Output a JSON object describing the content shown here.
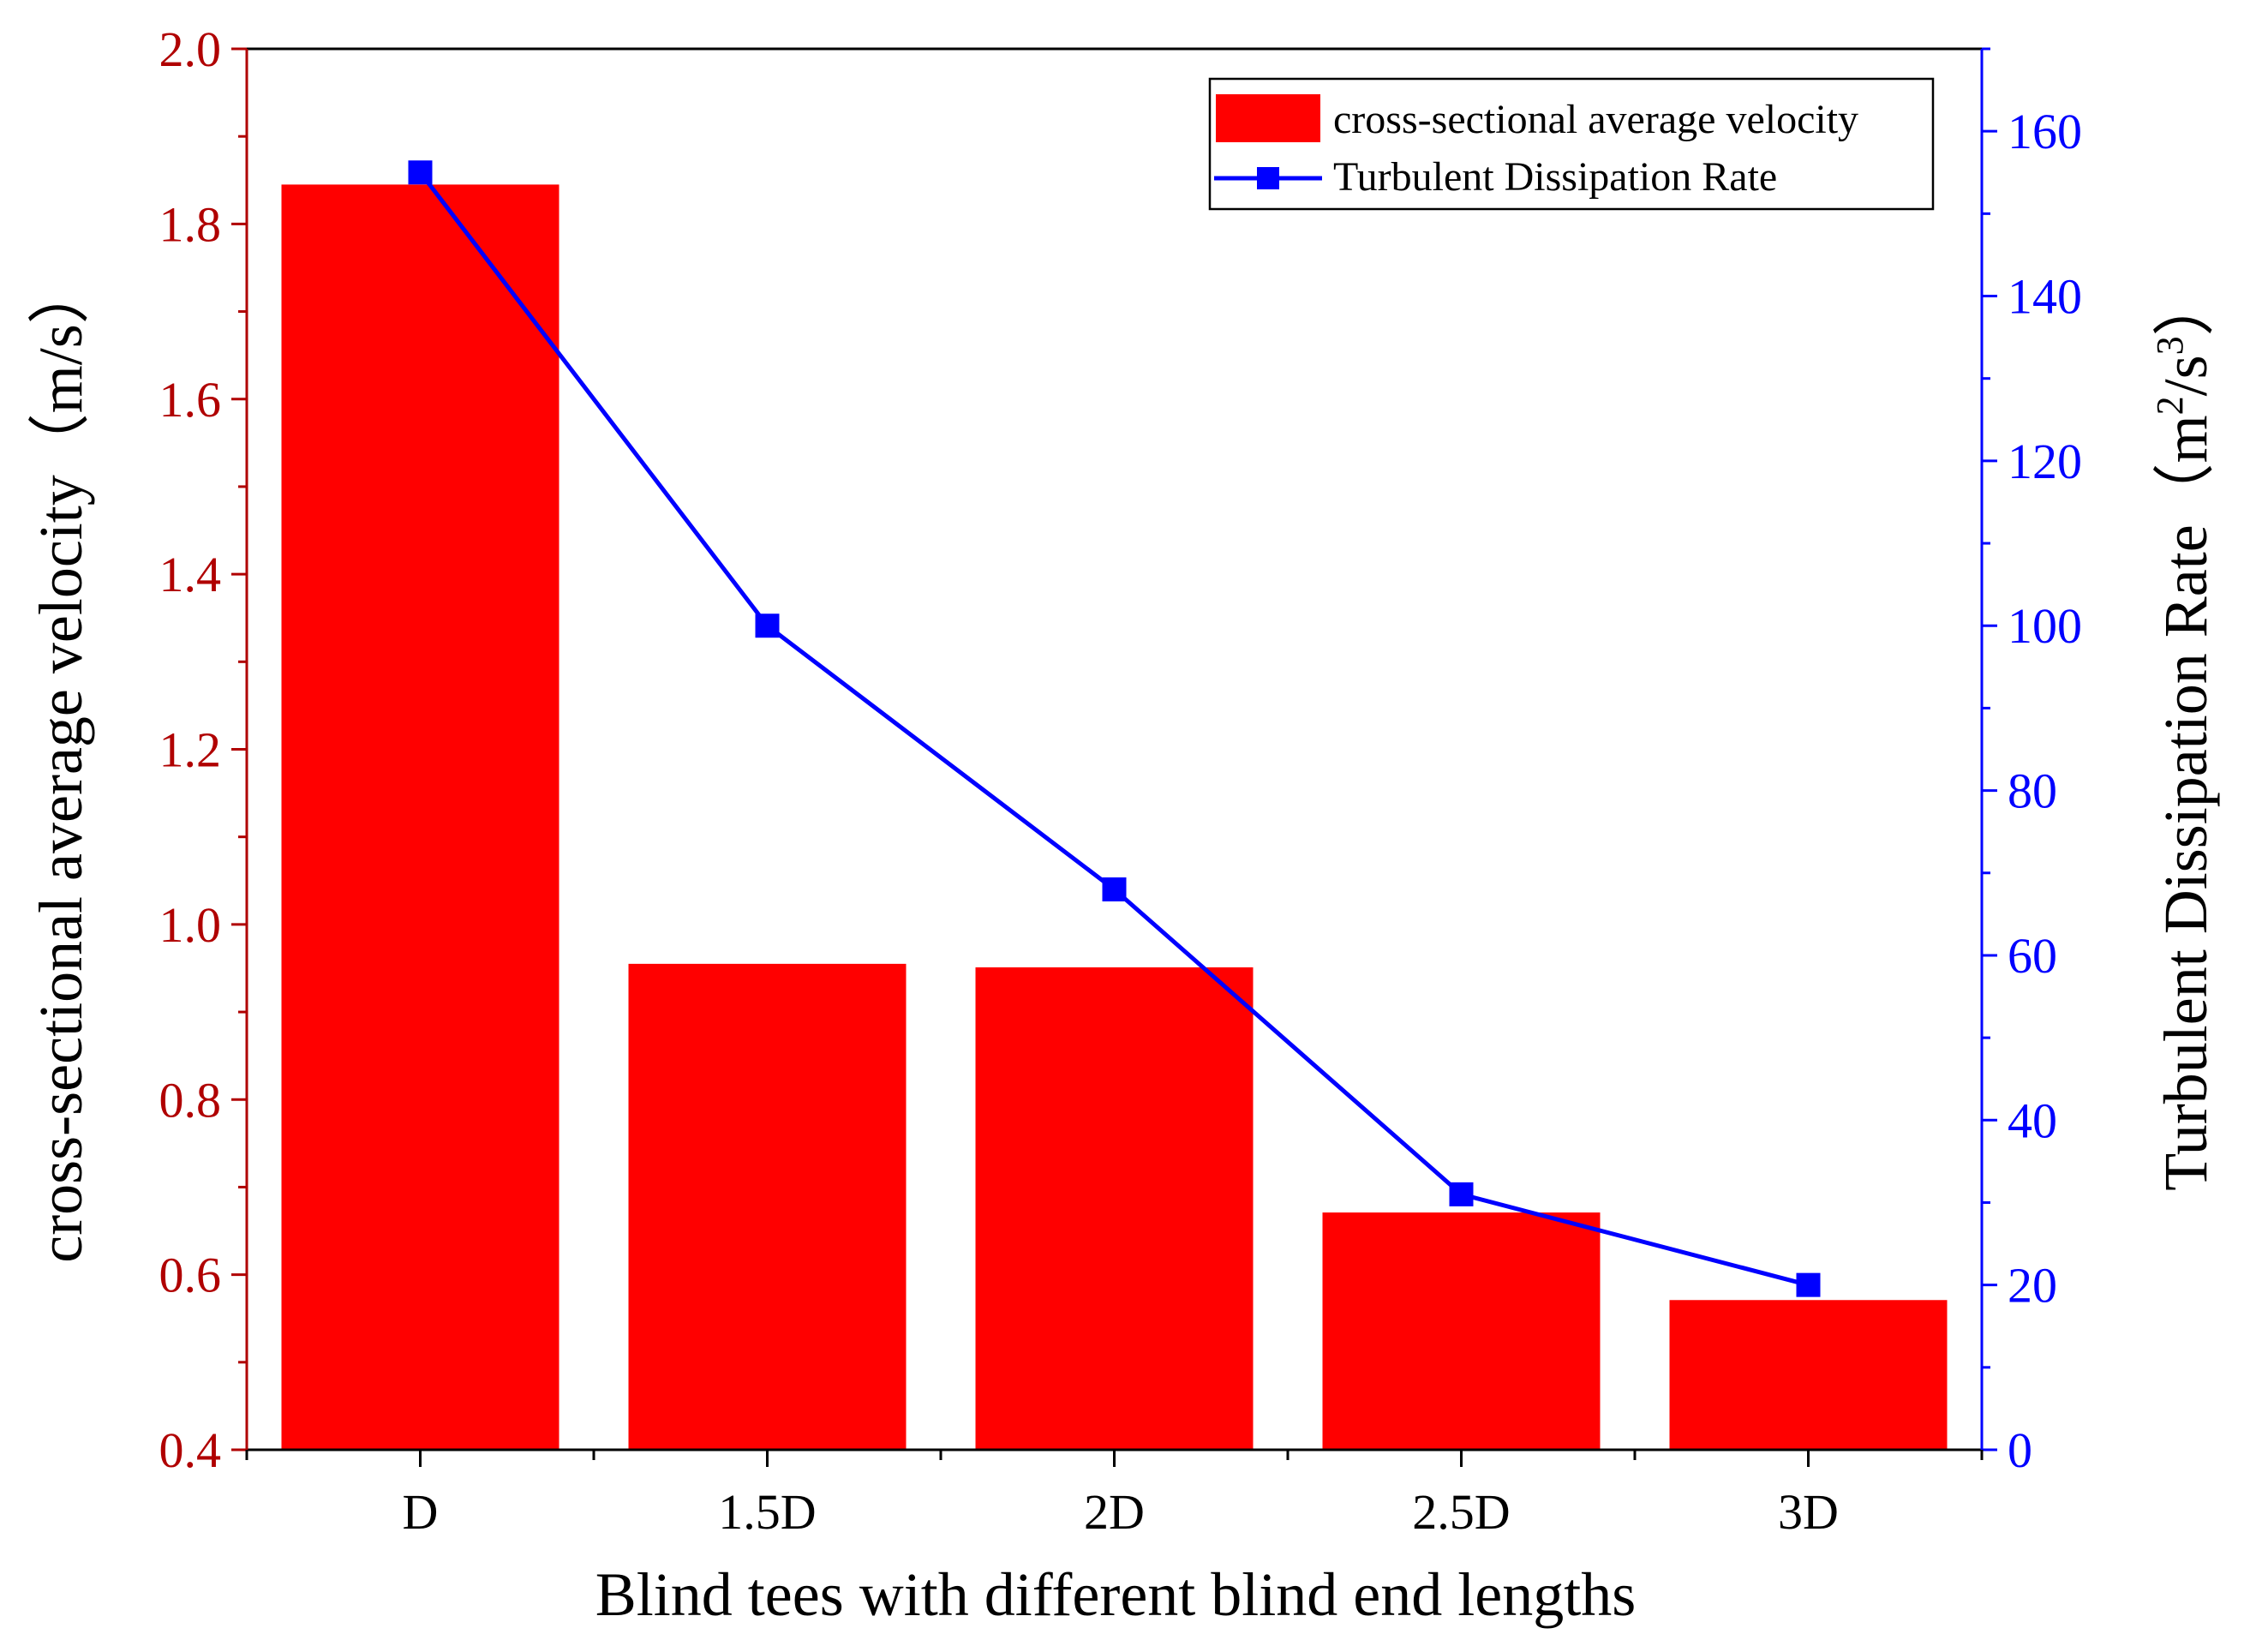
{
  "colors": {
    "bar": "#ff0000",
    "line": "#0000ff",
    "left_axis": "#b00000",
    "right_axis": "#0000ff",
    "frame": "#000000"
  },
  "chart_data": {
    "type": "bar+line",
    "title": "",
    "xlabel": "Blind tees with different blind end lengths",
    "categories": [
      "D",
      "1.5D",
      "2D",
      "2.5D",
      "3D"
    ],
    "y_left": {
      "label": "cross-sectional average velocity（m/s）",
      "ylim": [
        0.4,
        2.0
      ],
      "ticks": [
        0.4,
        0.6,
        0.8,
        1.0,
        1.2,
        1.4,
        1.6,
        1.8,
        2.0
      ],
      "tick_labels": [
        "0.4",
        "0.6",
        "0.8",
        "1.0",
        "1.2",
        "1.4",
        "1.6",
        "1.8",
        "2.0"
      ]
    },
    "y_right": {
      "label_main": "Turbulent Dissipation Rate（m",
      "label_sup1": "2",
      "label_mid": "/s",
      "label_sup2": "3",
      "label_end": "）",
      "ylim": [
        0,
        170
      ],
      "ticks": [
        0,
        20,
        40,
        60,
        80,
        100,
        120,
        140,
        160
      ],
      "tick_labels": [
        "0",
        "20",
        "40",
        "60",
        "80",
        "100",
        "120",
        "140",
        "160"
      ]
    },
    "series": [
      {
        "name": "cross-sectional average velocity",
        "type": "bar",
        "axis": "left",
        "values": [
          1.845,
          0.955,
          0.951,
          0.671,
          0.571
        ]
      },
      {
        "name": "Turbulent Dissipation Rate",
        "type": "line",
        "axis": "right",
        "values": [
          155,
          100,
          68,
          31,
          20
        ]
      }
    ],
    "legend": {
      "position": "top-right",
      "items": [
        "cross-sectional average velocity",
        "Turbulent Dissipation Rate"
      ]
    }
  }
}
